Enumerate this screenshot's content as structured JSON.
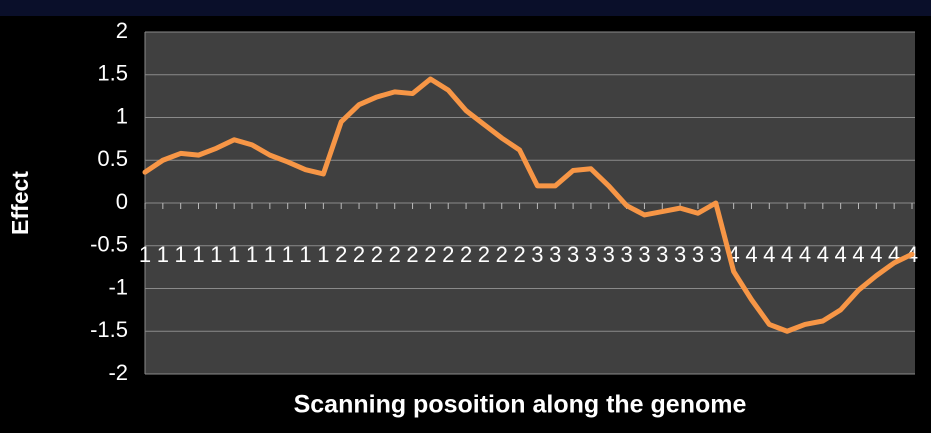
{
  "chart_data": {
    "type": "line",
    "categories": [
      "1",
      "1",
      "1",
      "1",
      "1",
      "1",
      "1",
      "1",
      "1",
      "1",
      "1",
      "2",
      "2",
      "2",
      "2",
      "2",
      "2",
      "2",
      "2",
      "2",
      "2",
      "2",
      "3",
      "3",
      "3",
      "3",
      "3",
      "3",
      "3",
      "3",
      "3",
      "3",
      "3",
      "4",
      "4",
      "4",
      "4",
      "4",
      "4",
      "4",
      "4",
      "4",
      "4",
      "4"
    ],
    "series": [
      {
        "name": "Effect",
        "color": "#f79646",
        "values": [
          0.36,
          0.5,
          0.58,
          0.56,
          0.64,
          0.74,
          0.68,
          0.56,
          0.48,
          0.39,
          0.34,
          0.95,
          1.15,
          1.24,
          1.3,
          1.28,
          1.45,
          1.32,
          1.08,
          0.92,
          0.76,
          0.62,
          0.2,
          0.2,
          0.38,
          0.4,
          0.2,
          -0.03,
          -0.14,
          -0.1,
          -0.06,
          -0.12,
          0,
          -0.8,
          -1.13,
          -1.42,
          -1.5,
          -1.42,
          -1.38,
          -1.25,
          -1.02,
          -0.85,
          -0.7,
          -0.6
        ]
      }
    ],
    "x_label": "Scanning posoition along the genome",
    "y_label": "Effect",
    "ylim": [
      -2,
      2
    ],
    "yticks": [
      2,
      1.5,
      1,
      0.5,
      0,
      -0.5,
      -1,
      -1.5,
      -2
    ],
    "grid": true
  }
}
